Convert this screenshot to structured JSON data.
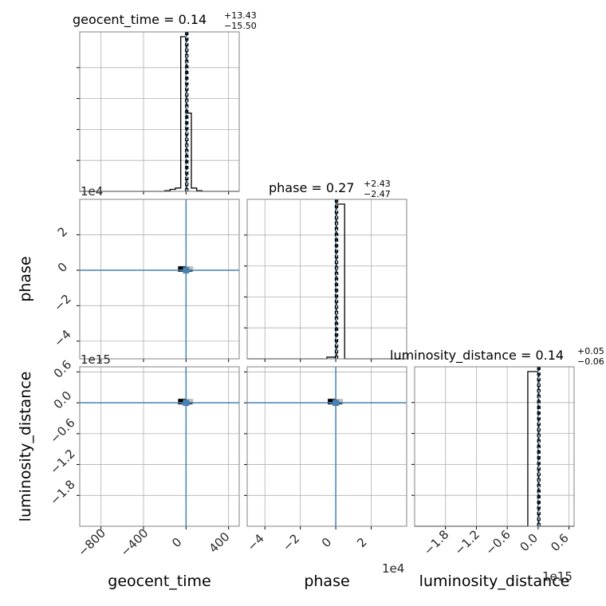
{
  "chart_data": {
    "type": "corner",
    "parameters": [
      "geocent_time",
      "phase",
      "luminosity_distance"
    ],
    "axis_labels": {
      "x": [
        "geocent_time",
        "phase",
        "luminosity_distance"
      ],
      "y": [
        "phase",
        "luminosity_distance"
      ]
    },
    "titles": [
      {
        "param": "geocent_time",
        "text": "geocent_time = 0.14",
        "plus": "+13.43",
        "minus": "−15.50"
      },
      {
        "param": "phase",
        "text": "phase = 0.27",
        "plus": "+2.43",
        "minus": "−2.47"
      },
      {
        "param": "luminosity_distance",
        "text": "luminosity_distance = 0.14",
        "plus": "+0.05",
        "minus": "−0.06"
      }
    ],
    "offsets": {
      "phase_y": "1e4",
      "luminosity_distance_y": "1e15",
      "phase_x": "1e4",
      "luminosity_distance_x": "1e15"
    },
    "ranges": {
      "geocent_time": [
        -1000,
        500
      ],
      "phase": [
        -5,
        4
      ],
      "luminosity_distance": [
        -2.4,
        0.7
      ]
    },
    "ticks": {
      "geocent_time": {
        "values": [
          -800,
          -400,
          0,
          400
        ],
        "labels": [
          "−800",
          "−400",
          "0",
          "400"
        ]
      },
      "phase": {
        "values": [
          -4,
          -2,
          0,
          2
        ],
        "labels": [
          "−4",
          "−2",
          "0",
          "2"
        ]
      },
      "luminosity_distance": {
        "values": [
          -1.8,
          -1.2,
          -0.6,
          0.0,
          0.6
        ],
        "labels": [
          "−1.8",
          "−1.2",
          "−0.6",
          "0.0",
          "0.6"
        ]
      }
    },
    "truths": {
      "geocent_time": 0,
      "phase": 0,
      "luminosity_distance": 0
    },
    "histograms": {
      "geocent_time": {
        "edges": [
          -1000,
          -950,
          -900,
          -850,
          -800,
          -750,
          -700,
          -650,
          -600,
          -550,
          -500,
          -450,
          -400,
          -350,
          -300,
          -250,
          -200,
          -150,
          -100,
          -50,
          0,
          50,
          100,
          150,
          200,
          250,
          300,
          350,
          400,
          450,
          500
        ],
        "counts": [
          0,
          0,
          0,
          0,
          0,
          0,
          0,
          0,
          0,
          0,
          0,
          0,
          0,
          0,
          0,
          0,
          0.004,
          0.012,
          0.02,
          0.93,
          0.47,
          0.02,
          0.004,
          0,
          0,
          0,
          0,
          0,
          0,
          0
        ]
      },
      "phase": {
        "edges": [
          -5,
          -4.5,
          -4,
          -3.5,
          -3,
          -2.5,
          -2,
          -1.5,
          -1,
          -0.5,
          0,
          0.5,
          1,
          1.5,
          2,
          2.5,
          3,
          3.5,
          4
        ],
        "counts": [
          0,
          0,
          0,
          0,
          0,
          0,
          0,
          0,
          0,
          0.01,
          0.95,
          0,
          0,
          0,
          0,
          0,
          0,
          0
        ]
      },
      "luminosity_distance": {
        "edges": [
          -2.4,
          -2.3,
          -2.2,
          -2.1,
          -2.0,
          -1.9,
          -1.8,
          -1.7,
          -1.6,
          -1.5,
          -1.4,
          -1.3,
          -1.2,
          -1.1,
          -1.0,
          -0.9,
          -0.8,
          -0.7,
          -0.6,
          -0.5,
          -0.4,
          -0.3,
          -0.2,
          -0.1,
          0.0,
          0.1,
          0.2,
          0.3,
          0.4,
          0.5,
          0.6,
          0.7
        ],
        "counts": [
          0,
          0,
          0,
          0,
          0,
          0,
          0,
          0,
          0,
          0,
          0,
          0,
          0,
          0,
          0,
          0,
          0,
          0,
          0,
          0,
          0,
          0,
          0.95,
          0.95,
          0,
          0,
          0,
          0,
          0,
          0,
          0
        ]
      }
    },
    "grid": true,
    "colors": {
      "truth": "#4682b4",
      "hist": "#000000",
      "grid": "#b0b0b0",
      "axes": "#808080"
    }
  }
}
